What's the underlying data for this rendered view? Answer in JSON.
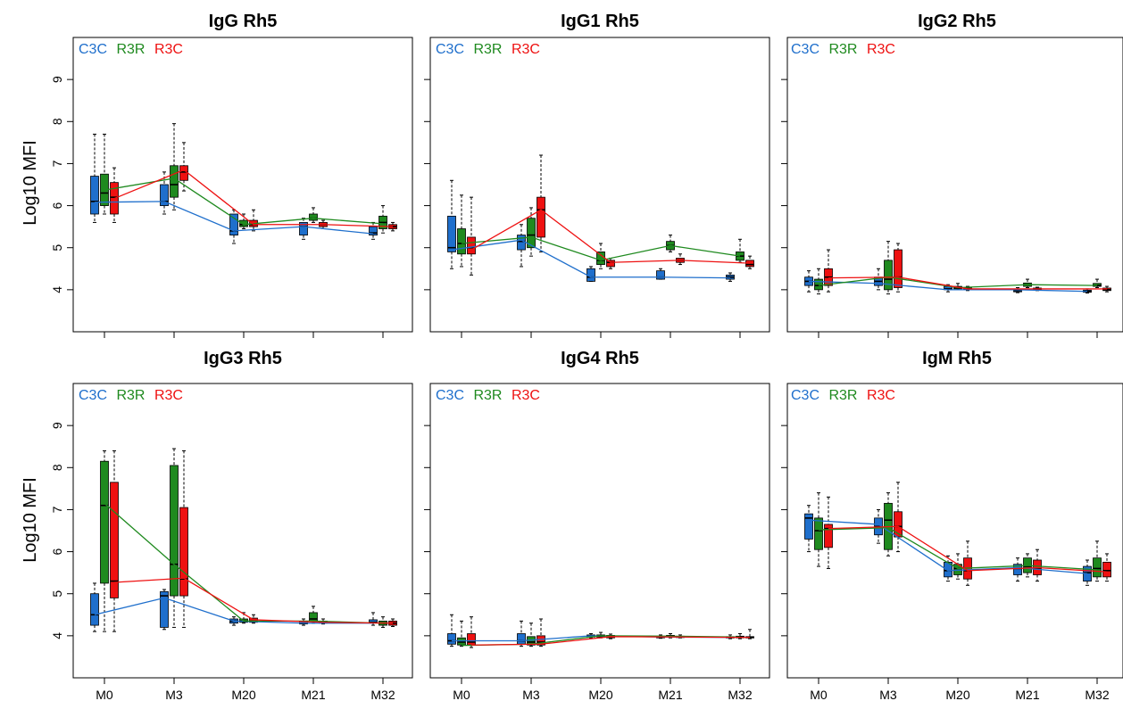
{
  "colors": {
    "C3C": "#1f6fcc",
    "R3R": "#1f8a1f",
    "R3C": "#ee1111"
  },
  "chart_data": [
    {
      "type": "box",
      "title": "IgG Rh5",
      "ylabel": "Log10 MFI",
      "ylim": [
        3.0,
        10.0
      ],
      "yticks": [
        4,
        5,
        6,
        7,
        8,
        9
      ],
      "categories": [
        "M0",
        "M3",
        "M20",
        "M21",
        "M32"
      ],
      "series": [
        {
          "name": "C3C",
          "color": "#1f6fcc",
          "boxes": [
            [
              5.6,
              5.8,
              6.1,
              6.7,
              7.7
            ],
            [
              5.8,
              6.0,
              6.1,
              6.5,
              6.8
            ],
            [
              5.1,
              5.3,
              5.4,
              5.8,
              5.9
            ],
            [
              5.2,
              5.3,
              5.5,
              5.6,
              5.7
            ],
            [
              5.2,
              5.3,
              5.35,
              5.5,
              5.6
            ]
          ],
          "mean": [
            6.08,
            6.1,
            5.4,
            5.5,
            5.33
          ]
        },
        {
          "name": "R3R",
          "color": "#1f8a1f",
          "boxes": [
            [
              5.8,
              6.0,
              6.3,
              6.75,
              7.7
            ],
            [
              5.9,
              6.2,
              6.5,
              6.95,
              7.95
            ],
            [
              5.45,
              5.5,
              5.55,
              5.65,
              5.8
            ],
            [
              5.6,
              5.65,
              5.7,
              5.8,
              5.95
            ],
            [
              5.35,
              5.45,
              5.6,
              5.75,
              6.0
            ]
          ],
          "mean": [
            6.37,
            6.65,
            5.55,
            5.7,
            5.57
          ]
        },
        {
          "name": "R3C",
          "color": "#ee1111",
          "boxes": [
            [
              5.6,
              5.8,
              6.2,
              6.55,
              6.9
            ],
            [
              6.35,
              6.6,
              6.8,
              6.95,
              7.5
            ],
            [
              5.4,
              5.5,
              5.55,
              5.65,
              5.9
            ],
            [
              5.45,
              5.5,
              5.55,
              5.6,
              5.65
            ],
            [
              5.4,
              5.45,
              5.5,
              5.55,
              5.6
            ]
          ],
          "mean": [
            6.17,
            6.85,
            5.55,
            5.55,
            5.5
          ]
        }
      ]
    },
    {
      "type": "box",
      "title": "IgG1 Rh5",
      "ylim": [
        3.0,
        10.0
      ],
      "yticks": [
        4,
        5,
        6,
        7,
        8,
        9
      ],
      "categories": [
        "M0",
        "M3",
        "M20",
        "M21",
        "M32"
      ],
      "series": [
        {
          "name": "C3C",
          "color": "#1f6fcc",
          "boxes": [
            [
              4.5,
              4.9,
              5.0,
              5.75,
              6.6
            ],
            [
              4.55,
              4.95,
              5.15,
              5.3,
              5.55
            ],
            [
              4.2,
              4.2,
              4.3,
              4.5,
              4.55
            ],
            [
              4.25,
              4.25,
              4.3,
              4.45,
              4.5
            ],
            [
              4.2,
              4.25,
              4.3,
              4.35,
              4.4
            ]
          ],
          "mean": [
            4.95,
            5.18,
            4.3,
            4.3,
            4.28
          ]
        },
        {
          "name": "R3R",
          "color": "#1f8a1f",
          "boxes": [
            [
              4.55,
              4.85,
              5.1,
              5.45,
              6.25
            ],
            [
              4.8,
              5.0,
              5.3,
              5.7,
              5.95
            ],
            [
              4.5,
              4.6,
              4.7,
              4.9,
              5.1
            ],
            [
              4.9,
              4.95,
              5.05,
              5.15,
              5.3
            ],
            [
              4.65,
              4.7,
              4.8,
              4.9,
              5.2
            ]
          ],
          "mean": [
            5.1,
            5.25,
            4.7,
            5.05,
            4.8
          ]
        },
        {
          "name": "R3C",
          "color": "#ee1111",
          "boxes": [
            [
              4.35,
              4.85,
              5.0,
              5.25,
              6.2
            ],
            [
              4.9,
              5.25,
              5.9,
              6.2,
              7.2
            ],
            [
              4.5,
              4.55,
              4.65,
              4.7,
              4.75
            ],
            [
              4.6,
              4.65,
              4.7,
              4.75,
              4.85
            ],
            [
              4.5,
              4.55,
              4.6,
              4.7,
              4.8
            ]
          ],
          "mean": [
            4.95,
            5.9,
            4.65,
            4.7,
            4.63
          ]
        }
      ]
    },
    {
      "type": "box",
      "title": "IgG2 Rh5",
      "ylim": [
        3.0,
        10.0
      ],
      "yticks": [
        4,
        5,
        6,
        7,
        8,
        9
      ],
      "categories": [
        "M0",
        "M3",
        "M20",
        "M21",
        "M32"
      ],
      "series": [
        {
          "name": "C3C",
          "color": "#1f6fcc",
          "boxes": [
            [
              3.95,
              4.1,
              4.2,
              4.3,
              4.45
            ],
            [
              4.0,
              4.1,
              4.2,
              4.3,
              4.5
            ],
            [
              3.95,
              4.0,
              4.02,
              4.08,
              4.12
            ],
            [
              3.93,
              3.95,
              3.98,
              4.02,
              4.05
            ],
            [
              3.92,
              3.94,
              3.96,
              3.99,
              4.02
            ]
          ],
          "mean": [
            4.2,
            4.15,
            4.0,
            4.0,
            3.96
          ]
        },
        {
          "name": "R3R",
          "color": "#1f8a1f",
          "boxes": [
            [
              3.9,
              4.0,
              4.1,
              4.25,
              4.5
            ],
            [
              3.9,
              4.0,
              4.25,
              4.7,
              5.15
            ],
            [
              4.0,
              4.02,
              4.05,
              4.08,
              4.15
            ],
            [
              4.05,
              4.08,
              4.12,
              4.16,
              4.25
            ],
            [
              4.05,
              4.08,
              4.1,
              4.15,
              4.25
            ]
          ],
          "mean": [
            4.1,
            4.3,
            4.05,
            4.12,
            4.1
          ]
        },
        {
          "name": "R3C",
          "color": "#ee1111",
          "boxes": [
            [
              3.95,
              4.1,
              4.3,
              4.5,
              4.95
            ],
            [
              3.95,
              4.05,
              4.3,
              4.95,
              5.1
            ],
            [
              3.98,
              4.0,
              4.02,
              4.05,
              4.08
            ],
            [
              3.98,
              4.0,
              4.02,
              4.04,
              4.06
            ],
            [
              3.95,
              3.98,
              4.0,
              4.04,
              4.08
            ]
          ],
          "mean": [
            4.28,
            4.3,
            4.02,
            4.02,
            4.02
          ]
        }
      ]
    },
    {
      "type": "box",
      "title": "IgG3 Rh5",
      "ylabel": "Log10 MFI",
      "ylim": [
        3.0,
        10.0
      ],
      "yticks": [
        4,
        5,
        6,
        7,
        8,
        9
      ],
      "categories": [
        "M0",
        "M3",
        "M20",
        "M21",
        "M32"
      ],
      "series": [
        {
          "name": "C3C",
          "color": "#1f6fcc",
          "boxes": [
            [
              4.1,
              4.25,
              4.5,
              5.0,
              5.25
            ],
            [
              4.15,
              4.2,
              4.95,
              5.05,
              5.1
            ],
            [
              4.25,
              4.3,
              4.35,
              4.4,
              4.45
            ],
            [
              4.25,
              4.28,
              4.3,
              4.35,
              4.4
            ],
            [
              4.25,
              4.3,
              4.32,
              4.38,
              4.55
            ]
          ],
          "mean": [
            4.5,
            4.9,
            4.35,
            4.3,
            4.3
          ]
        },
        {
          "name": "R3R",
          "color": "#1f8a1f",
          "boxes": [
            [
              4.1,
              5.25,
              7.1,
              8.15,
              8.4
            ],
            [
              4.2,
              4.95,
              5.7,
              8.05,
              8.45
            ],
            [
              4.3,
              4.32,
              4.35,
              4.4,
              4.55
            ],
            [
              4.3,
              4.35,
              4.4,
              4.55,
              4.7
            ],
            [
              4.2,
              4.25,
              4.3,
              4.35,
              4.45
            ]
          ],
          "mean": [
            7.15,
            5.7,
            4.35,
            4.35,
            4.3
          ]
        },
        {
          "name": "R3C",
          "color": "#ee1111",
          "boxes": [
            [
              4.1,
              4.9,
              5.3,
              7.65,
              8.4
            ],
            [
              4.2,
              4.95,
              5.35,
              7.05,
              8.4
            ],
            [
              4.3,
              4.32,
              4.35,
              4.42,
              4.5
            ],
            [
              4.28,
              4.3,
              4.32,
              4.35,
              4.4
            ],
            [
              4.22,
              4.25,
              4.3,
              4.35,
              4.4
            ]
          ],
          "mean": [
            5.27,
            5.37,
            4.38,
            4.32,
            4.3
          ]
        }
      ]
    },
    {
      "type": "box",
      "title": "IgG4 Rh5",
      "ylim": [
        3.0,
        10.0
      ],
      "yticks": [
        4,
        5,
        6,
        7,
        8,
        9
      ],
      "categories": [
        "M0",
        "M3",
        "M20",
        "M21",
        "M32"
      ],
      "series": [
        {
          "name": "C3C",
          "color": "#1f6fcc",
          "boxes": [
            [
              3.75,
              3.8,
              3.88,
              4.05,
              4.5
            ],
            [
              3.75,
              3.8,
              3.88,
              4.05,
              4.35
            ],
            [
              3.95,
              3.97,
              4.0,
              4.02,
              4.05
            ],
            [
              3.94,
              3.95,
              3.97,
              3.99,
              4.02
            ],
            [
              3.93,
              3.95,
              3.96,
              3.98,
              4.02
            ]
          ],
          "mean": [
            3.88,
            3.88,
            4.0,
            3.97,
            3.96
          ]
        },
        {
          "name": "R3R",
          "color": "#1f8a1f",
          "boxes": [
            [
              3.75,
              3.78,
              3.85,
              3.95,
              4.35
            ],
            [
              3.75,
              3.78,
              3.85,
              3.98,
              4.3
            ],
            [
              3.95,
              3.97,
              3.99,
              4.02,
              4.08
            ],
            [
              3.95,
              3.97,
              3.99,
              4.01,
              4.05
            ],
            [
              3.93,
              3.95,
              3.97,
              3.99,
              4.05
            ]
          ],
          "mean": [
            3.77,
            3.8,
            4.0,
            3.99,
            3.97
          ]
        },
        {
          "name": "R3C",
          "color": "#ee1111",
          "boxes": [
            [
              3.72,
              3.78,
              3.85,
              4.05,
              4.45
            ],
            [
              3.75,
              3.78,
              3.85,
              4.0,
              4.4
            ],
            [
              3.93,
              3.95,
              3.98,
              4.01,
              4.04
            ],
            [
              3.95,
              3.96,
              3.97,
              3.99,
              4.02
            ],
            [
              3.93,
              3.95,
              3.96,
              3.98,
              4.15
            ]
          ],
          "mean": [
            3.78,
            3.8,
            3.98,
            3.97,
            3.96
          ]
        }
      ]
    },
    {
      "type": "box",
      "title": "IgM Rh5",
      "ylim": [
        3.0,
        10.0
      ],
      "yticks": [
        4,
        5,
        6,
        7,
        8,
        9
      ],
      "categories": [
        "M0",
        "M3",
        "M20",
        "M21",
        "M32"
      ],
      "series": [
        {
          "name": "C3C",
          "color": "#1f6fcc",
          "boxes": [
            [
              6.0,
              6.3,
              6.8,
              6.9,
              7.1
            ],
            [
              6.2,
              6.4,
              6.6,
              6.8,
              7.0
            ],
            [
              5.3,
              5.4,
              5.55,
              5.75,
              5.9
            ],
            [
              5.3,
              5.45,
              5.6,
              5.7,
              5.85
            ],
            [
              5.2,
              5.3,
              5.5,
              5.65,
              5.8
            ]
          ],
          "mean": [
            6.75,
            6.65,
            5.55,
            5.62,
            5.48
          ]
        },
        {
          "name": "R3R",
          "color": "#1f8a1f",
          "boxes": [
            [
              5.65,
              6.05,
              6.5,
              6.8,
              7.4
            ],
            [
              5.9,
              6.05,
              6.75,
              7.15,
              7.4
            ],
            [
              5.35,
              5.45,
              5.6,
              5.7,
              5.95
            ],
            [
              5.4,
              5.5,
              5.65,
              5.85,
              5.95
            ],
            [
              5.3,
              5.4,
              5.6,
              5.85,
              6.25
            ]
          ],
          "mean": [
            6.52,
            6.57,
            5.6,
            5.67,
            5.57
          ]
        },
        {
          "name": "R3C",
          "color": "#ee1111",
          "boxes": [
            [
              5.6,
              6.1,
              6.55,
              6.65,
              7.3
            ],
            [
              6.0,
              6.35,
              6.6,
              6.95,
              7.65
            ],
            [
              5.2,
              5.35,
              5.55,
              5.85,
              6.25
            ],
            [
              5.3,
              5.45,
              5.6,
              5.8,
              6.05
            ],
            [
              5.3,
              5.4,
              5.55,
              5.75,
              5.95
            ]
          ],
          "mean": [
            6.55,
            6.6,
            5.55,
            5.62,
            5.52
          ]
        }
      ]
    }
  ]
}
